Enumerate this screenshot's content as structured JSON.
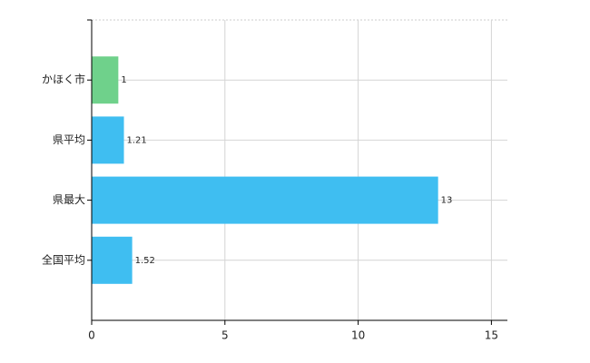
{
  "chart_data": {
    "type": "hbar",
    "categories": [
      "かほく市",
      "県平均",
      "県最大",
      "全国平均"
    ],
    "values": [
      1,
      1.21,
      13,
      1.52
    ],
    "colors": [
      "#6fd18b",
      "#3fbef1",
      "#3fbef1",
      "#3fbef1"
    ],
    "xlim": [
      0,
      15.6
    ],
    "xticks": [
      0,
      5,
      10,
      15
    ],
    "grid": true
  }
}
